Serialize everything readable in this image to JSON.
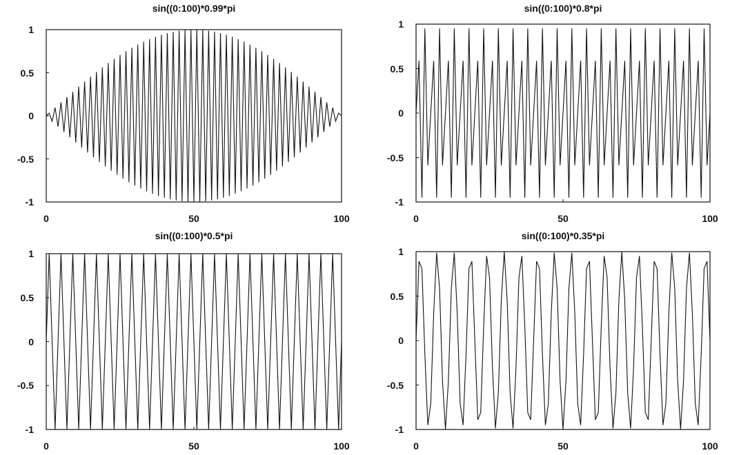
{
  "chart_data": [
    {
      "type": "line",
      "title": "sin((0:100)*0.99*pi",
      "factor": 0.99,
      "xlim": [
        0,
        100
      ],
      "ylim": [
        -1,
        1
      ],
      "xticks": [
        "0",
        "50",
        "100"
      ],
      "yticks": [
        "1",
        "0.5",
        "0",
        "-0.5",
        "-1"
      ],
      "x_start": 0,
      "x_end": 100,
      "x_step": 1,
      "grid": false
    },
    {
      "type": "line",
      "title": "sin((0:100)*0.8*pi",
      "factor": 0.8,
      "xlim": [
        0,
        100
      ],
      "ylim": [
        -1,
        1
      ],
      "xticks": [
        "0",
        "50",
        "100"
      ],
      "yticks": [
        "1",
        "0.5",
        "0",
        "-0.5",
        "-1"
      ],
      "x_start": 0,
      "x_end": 100,
      "x_step": 1,
      "grid": false
    },
    {
      "type": "line",
      "title": "sin((0:100)*0.5*pi",
      "factor": 0.5,
      "xlim": [
        0,
        100
      ],
      "ylim": [
        -1,
        1
      ],
      "xticks": [
        "0",
        "50",
        "100"
      ],
      "yticks": [
        "1",
        "0.5",
        "0",
        "-0.5",
        "-1"
      ],
      "x_start": 0,
      "x_end": 100,
      "x_step": 1,
      "grid": false
    },
    {
      "type": "line",
      "title": "sin((0:100)*0.35*pi",
      "factor": 0.35,
      "xlim": [
        0,
        100
      ],
      "ylim": [
        -1,
        1
      ],
      "xticks": [
        "0",
        "50",
        "100"
      ],
      "yticks": [
        "1",
        "0.5",
        "0",
        "-0.5",
        "-1"
      ],
      "x_start": 0,
      "x_end": 100,
      "x_step": 1,
      "grid": false
    }
  ]
}
